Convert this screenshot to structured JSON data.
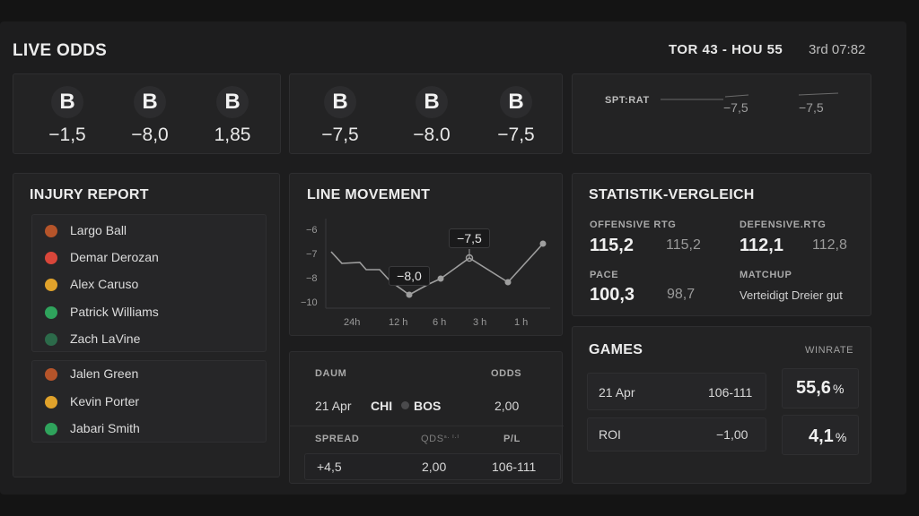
{
  "header": {
    "title": "LIVE ODDS",
    "score": "TOR 43 - HOU 55",
    "clock": "3rd 07:82"
  },
  "odds_group_1": [
    {
      "badge": "B",
      "value": "−1,5"
    },
    {
      "badge": "B",
      "value": "−8,0"
    },
    {
      "badge": "B",
      "value": "1,85"
    }
  ],
  "odds_group_2": [
    {
      "badge": "B",
      "value": "−7,5"
    },
    {
      "badge": "B",
      "value": "−8.0"
    },
    {
      "badge": "B",
      "value": "−7,5"
    }
  ],
  "spt": {
    "label": "SPT:RAT",
    "values": [
      "−7,5",
      "−7,5"
    ]
  },
  "injury": {
    "title": "INJURY REPORT",
    "group_a": [
      {
        "name": "Largo Ball",
        "status": "ball",
        "color": "#b5542a"
      },
      {
        "name": "Demar Derozan",
        "status": "out",
        "color": "#d9463a"
      },
      {
        "name": "Alex Caruso",
        "status": "questionable",
        "color": "#e0a22b"
      },
      {
        "name": "Patrick Williams",
        "status": "active",
        "color": "#2fa35c"
      },
      {
        "name": "Zach LaVine",
        "status": "active-dim",
        "color": "#2c6a4a"
      }
    ],
    "group_b": [
      {
        "name": "Jalen Green",
        "status": "ball",
        "color": "#b5542a"
      },
      {
        "name": "Kevin Porter",
        "status": "questionable",
        "color": "#e0a22b"
      },
      {
        "name": "Jabari Smith",
        "status": "active",
        "color": "#2fa35c"
      }
    ]
  },
  "line_movement": {
    "title": "LINE MOVEMENT",
    "callouts": [
      "−8,0",
      "−7,5"
    ],
    "chart_data": {
      "type": "line",
      "y_ticks": [
        "−6",
        "−7",
        "−8",
        "−10"
      ],
      "x_ticks": [
        "24h",
        "12 h",
        "6 h",
        "3 h",
        "1 h"
      ]
    }
  },
  "bet_table": {
    "col_date": "DAUM",
    "col_odds": "ODDS",
    "date": "21 Apr",
    "team_a": "CHI",
    "team_b": "BOS",
    "odds": "2,00",
    "col_spread": "SPREAD",
    "col_qds": "QDS",
    "col_qds_sup": "ᵃ· ᴵ·ᴵ",
    "col_pl": "P/L",
    "spread": "+4,5",
    "qds": "2,00",
    "pl": "106-111"
  },
  "stats": {
    "title": "STATISTIK-VERGLEICH",
    "off_label": "OFFENSIVE RTG",
    "off_main": "115,2",
    "off_alt": "115,2",
    "def_label": "DEFENSIVE.RTG",
    "def_main": "112,1",
    "def_alt": "112,8",
    "pace_label": "PACE",
    "pace_main": "100,3",
    "pace_alt": "98,7",
    "matchup_label": "MATCHUP",
    "matchup_text": "Verteidigt Dreier gut"
  },
  "games": {
    "title": "GAMES",
    "winrate_label": "WINRATE",
    "row1_date": "21 Apr",
    "row1_score": "106-111",
    "row1_pct": "55,6",
    "row2_label": "ROI",
    "row2_value": "−1,00",
    "row2_pct": "4,1",
    "pct_sign": "%"
  }
}
